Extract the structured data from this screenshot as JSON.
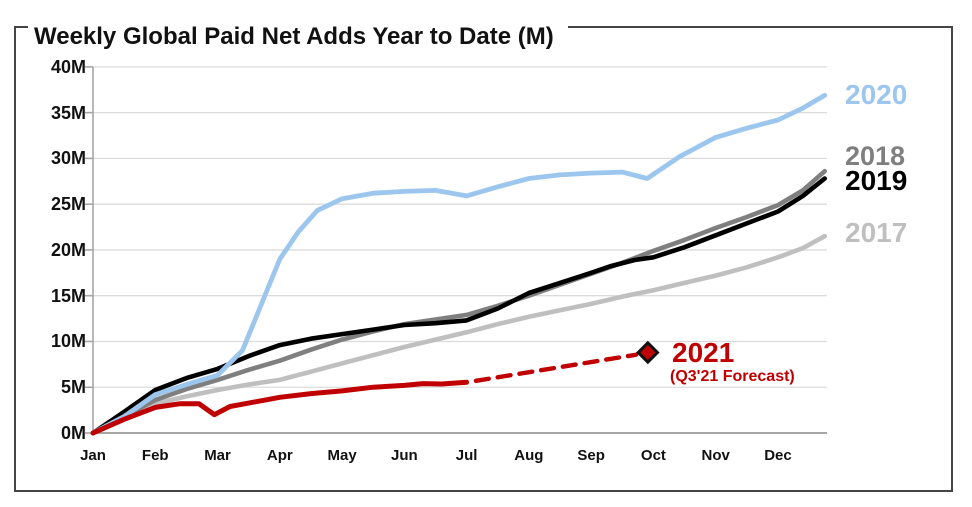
{
  "title": "Weekly Global Paid Net Adds Year to Date (M)",
  "labels": {
    "y2020": "2020",
    "y2018": "2018",
    "y2019": "2019",
    "y2017": "2017",
    "y2021": "2021",
    "forecast_note": "(Q3'21 Forecast)"
  },
  "colors": {
    "c2020": "#9DC6EE",
    "c2019": "#000000",
    "c2018": "#7F7F7F",
    "c2017": "#BFBFBF",
    "c2021": "#C00000",
    "gridline": "#DBDBDB",
    "axis": "#A6A6A6",
    "frame": "#454545",
    "marker_outline": "#111111"
  },
  "chart_data": {
    "type": "line",
    "title": "Weekly Global Paid Net Adds Year to Date (M)",
    "x_unit": "months, 0 = Jan tick ... 11 = Dec tick, lines end at 11.75",
    "categories": [
      "Jan",
      "Feb",
      "Mar",
      "Apr",
      "May",
      "Jun",
      "Jul",
      "Aug",
      "Sep",
      "Oct",
      "Nov",
      "Dec"
    ],
    "y_ticks": [
      0,
      5,
      10,
      15,
      20,
      25,
      30,
      35,
      40
    ],
    "y_tick_labels": [
      "0M",
      "5M",
      "10M",
      "15M",
      "20M",
      "25M",
      "30M",
      "35M",
      "40M"
    ],
    "ylim": [
      0,
      40
    ],
    "grid": "horizontal-only",
    "legend_position": "right-of-line-ends",
    "series": [
      {
        "name": "2017",
        "color": "#BFBFBF",
        "width": 4.6,
        "x": [
          0,
          0.5,
          1,
          1.5,
          2,
          2.5,
          3,
          3.5,
          4,
          4.5,
          5,
          5.5,
          6,
          6.5,
          7,
          7.5,
          8,
          8.5,
          9,
          9.5,
          10,
          10.5,
          11,
          11.4,
          11.75
        ],
        "values": [
          0,
          1.6,
          3.2,
          4.0,
          4.7,
          5.3,
          5.8,
          6.7,
          7.6,
          8.5,
          9.4,
          10.2,
          11.0,
          11.9,
          12.7,
          13.4,
          14.1,
          14.9,
          15.6,
          16.4,
          17.2,
          18.1,
          19.2,
          20.2,
          21.5
        ]
      },
      {
        "name": "2018",
        "color": "#7F7F7F",
        "width": 4.6,
        "x": [
          0,
          0.5,
          1,
          1.5,
          2,
          2.5,
          3,
          3.5,
          4,
          4.5,
          5,
          5.5,
          6,
          6.5,
          7,
          7.5,
          8,
          8.5,
          9,
          9.5,
          10,
          10.5,
          11,
          11.4,
          11.75
        ],
        "values": [
          0,
          1.8,
          3.6,
          4.8,
          5.8,
          6.9,
          7.9,
          9.1,
          10.2,
          11.1,
          11.9,
          12.4,
          12.9,
          13.9,
          15.0,
          16.2,
          17.4,
          18.6,
          19.9,
          21.1,
          22.4,
          23.6,
          24.9,
          26.5,
          28.6
        ]
      },
      {
        "name": "2019",
        "color": "#000000",
        "width": 4.6,
        "x": [
          0,
          0.5,
          1,
          1.5,
          2,
          2.5,
          3,
          3.5,
          4,
          4.5,
          5,
          5.5,
          6,
          6.5,
          7,
          7.5,
          8,
          8.3,
          8.7,
          9,
          9.5,
          10,
          10.5,
          11,
          11.4,
          11.75
        ],
        "values": [
          0,
          2.3,
          4.7,
          6.0,
          7.0,
          8.4,
          9.6,
          10.3,
          10.8,
          11.3,
          11.8,
          12.0,
          12.3,
          13.6,
          15.3,
          16.4,
          17.5,
          18.2,
          18.9,
          19.2,
          20.3,
          21.6,
          22.9,
          24.2,
          25.9,
          27.8
        ]
      },
      {
        "name": "2020",
        "color": "#9DC6EE",
        "width": 4.8,
        "x": [
          0,
          0.5,
          1,
          1.5,
          2,
          2.4,
          2.7,
          3,
          3.3,
          3.6,
          4,
          4.5,
          5,
          5.5,
          6,
          6.5,
          7,
          7.5,
          8,
          8.5,
          8.9,
          9.42,
          10,
          10.5,
          11,
          11.4,
          11.75
        ],
        "values": [
          0,
          1.8,
          4.2,
          5.3,
          6.3,
          9.0,
          14.0,
          19.0,
          22.0,
          24.3,
          25.6,
          26.2,
          26.4,
          26.5,
          25.9,
          26.9,
          27.8,
          28.2,
          28.4,
          28.5,
          27.8,
          30.2,
          32.3,
          33.3,
          34.2,
          35.5,
          36.9
        ]
      },
      {
        "name": "2021",
        "color": "#C00000",
        "width": 5,
        "style": "solid-then-dashed-forecast",
        "x": [
          0,
          0.5,
          1,
          1.4,
          1.7,
          1.95,
          2.2,
          2.6,
          3,
          3.5,
          4,
          4.5,
          5,
          5.3,
          5.6,
          6.0
        ],
        "values": [
          0,
          1.5,
          2.8,
          3.2,
          3.2,
          2.0,
          2.9,
          3.4,
          3.9,
          4.3,
          4.6,
          5.0,
          5.2,
          5.4,
          5.35,
          5.55
        ],
        "dashed_to_marker": {
          "x1": 6.15,
          "v1": 5.7,
          "x2": 8.72,
          "v2": 8.55
        },
        "forecast_marker": {
          "shape": "diamond",
          "x": 8.91,
          "value": 8.8
        }
      }
    ]
  }
}
